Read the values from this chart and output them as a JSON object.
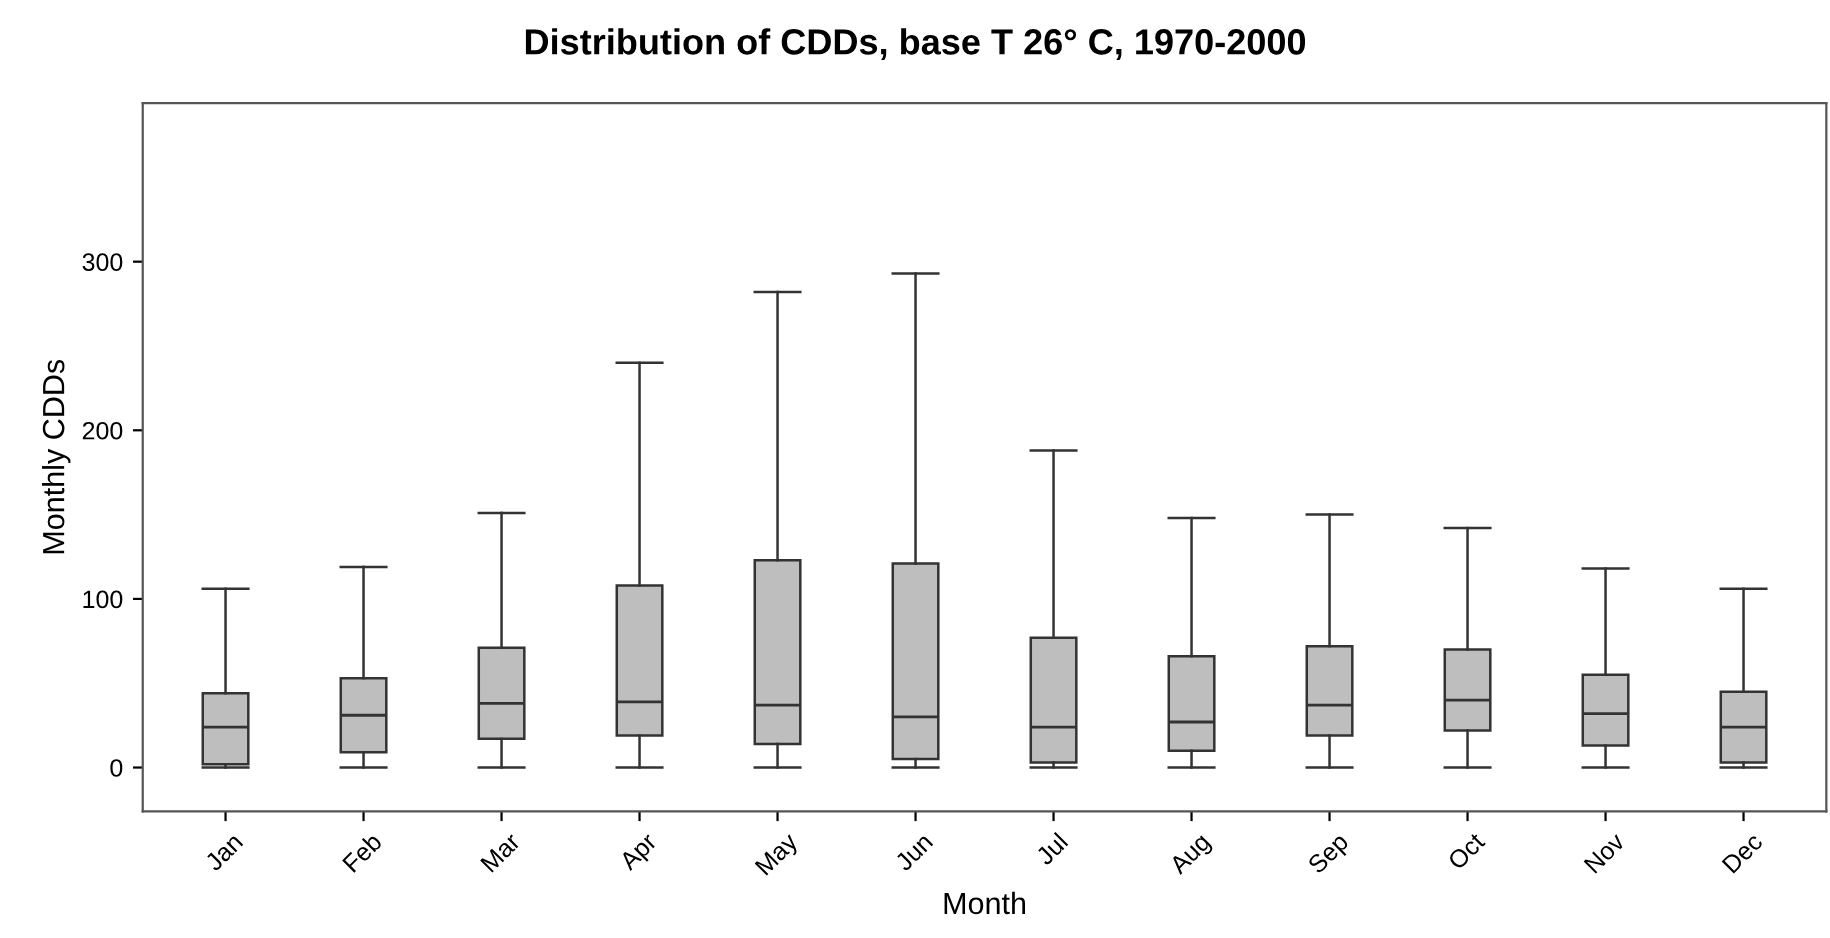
{
  "chart_data": {
    "type": "box",
    "title": "Distribution of CDDs, base T 26° C, 1970-2000",
    "xlabel": "Month",
    "ylabel": "Monthly CDDs",
    "categories": [
      "Jan",
      "Feb",
      "Mar",
      "Apr",
      "May",
      "Jun",
      "Jul",
      "Aug",
      "Sep",
      "Oct",
      "Nov",
      "Dec"
    ],
    "color": "#bebebe",
    "boxes": [
      {
        "low": 0,
        "q1": 2,
        "median": 24,
        "q3": 44,
        "high": 106
      },
      {
        "low": 0,
        "q1": 9,
        "median": 31,
        "q3": 53,
        "high": 119
      },
      {
        "low": 0,
        "q1": 17,
        "median": 38,
        "q3": 71,
        "high": 151
      },
      {
        "low": 0,
        "q1": 19,
        "median": 39,
        "q3": 108,
        "high": 240
      },
      {
        "low": 0,
        "q1": 14,
        "median": 37,
        "q3": 123,
        "high": 282
      },
      {
        "low": 0,
        "q1": 5,
        "median": 30,
        "q3": 121,
        "high": 293
      },
      {
        "low": 0,
        "q1": 3,
        "median": 24,
        "q3": 77,
        "high": 188
      },
      {
        "low": 0,
        "q1": 10,
        "median": 27,
        "q3": 66,
        "high": 148
      },
      {
        "low": 0,
        "q1": 19,
        "median": 37,
        "q3": 72,
        "high": 150
      },
      {
        "low": 0,
        "q1": 22,
        "median": 40,
        "q3": 70,
        "high": 142
      },
      {
        "low": 0,
        "q1": 13,
        "median": 32,
        "q3": 55,
        "high": 118
      },
      {
        "low": 0,
        "q1": 3,
        "median": 24,
        "q3": 45,
        "high": 106
      }
    ],
    "ylim": [
      -26,
      394
    ],
    "yticks": [
      0,
      100,
      200,
      300
    ],
    "grid": false
  }
}
